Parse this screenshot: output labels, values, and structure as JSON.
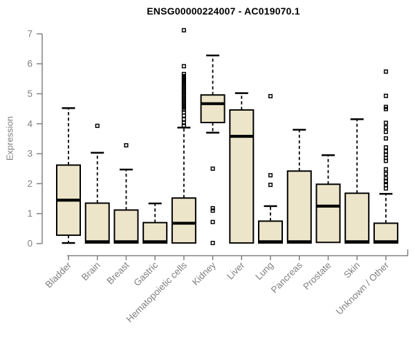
{
  "style": {
    "box_fill": "#ece5c9",
    "box_border": "#000000",
    "median_color": "#000000",
    "whisker_color": "#000000",
    "outlier_color": "#000000",
    "axis_color": "#808080",
    "tick_label_color": "#808080",
    "title_color": "#000000",
    "background": "#ffffff"
  },
  "chart_data": {
    "type": "boxplot",
    "title": "ENSG00000224007 - AC019070.1",
    "ylabel": "Expression",
    "xlabel": "",
    "ylim": [
      0,
      7
    ],
    "yticks": [
      0,
      1,
      2,
      3,
      4,
      5,
      6,
      7
    ],
    "grid": false,
    "legend": "none",
    "x_label_rotation_deg": 45,
    "categories": [
      "Bladder",
      "Brain",
      "Breast",
      "Gastric",
      "Hematopoietic cells",
      "Kidney",
      "Liver",
      "Lung",
      "Pancreas",
      "Prostate",
      "Skin",
      "Unknown / Other"
    ],
    "series": [
      {
        "category": "Bladder",
        "whisker_low": 0.02,
        "q1": 0.28,
        "median": 1.45,
        "q3": 2.62,
        "whisker_high": 4.52,
        "outliers": []
      },
      {
        "category": "Brain",
        "whisker_low": 0.0,
        "q1": 0.02,
        "median": 0.06,
        "q3": 1.35,
        "whisker_high": 3.03,
        "outliers": [
          3.93
        ]
      },
      {
        "category": "Breast",
        "whisker_low": 0.0,
        "q1": 0.02,
        "median": 0.06,
        "q3": 1.12,
        "whisker_high": 2.47,
        "outliers": [
          3.28
        ]
      },
      {
        "category": "Gastric",
        "whisker_low": 0.0,
        "q1": 0.02,
        "median": 0.06,
        "q3": 0.7,
        "whisker_high": 1.34,
        "outliers": []
      },
      {
        "category": "Hematopoietic cells",
        "whisker_low": 0.0,
        "q1": 0.02,
        "median": 0.68,
        "q3": 1.52,
        "whisker_high": 3.87,
        "outliers": [
          7.12,
          5.92,
          5.66,
          5.59,
          5.52,
          5.45,
          5.38,
          5.31,
          5.24,
          5.17,
          5.1,
          5.03,
          4.96,
          4.89,
          4.82,
          4.75,
          4.68,
          4.61,
          4.54,
          4.47,
          4.38,
          4.27,
          4.15,
          4.03,
          3.94
        ]
      },
      {
        "category": "Kidney",
        "whisker_low": 3.7,
        "q1": 4.04,
        "median": 4.67,
        "q3": 4.96,
        "whisker_high": 6.28,
        "outliers": [
          2.5,
          1.18,
          1.1,
          0.72,
          0.02
        ]
      },
      {
        "category": "Liver",
        "whisker_low": 0.0,
        "q1": 0.02,
        "median": 3.58,
        "q3": 4.46,
        "whisker_high": 5.02,
        "outliers": []
      },
      {
        "category": "Lung",
        "whisker_low": 0.0,
        "q1": 0.02,
        "median": 0.06,
        "q3": 0.75,
        "whisker_high": 1.25,
        "outliers": [
          4.92,
          2.28,
          1.96
        ]
      },
      {
        "category": "Pancreas",
        "whisker_low": 0.0,
        "q1": 0.02,
        "median": 0.06,
        "q3": 2.42,
        "whisker_high": 3.8,
        "outliers": []
      },
      {
        "category": "Prostate",
        "whisker_low": 0.0,
        "q1": 0.04,
        "median": 1.25,
        "q3": 1.98,
        "whisker_high": 2.95,
        "outliers": []
      },
      {
        "category": "Skin",
        "whisker_low": 0.0,
        "q1": 0.02,
        "median": 0.06,
        "q3": 1.68,
        "whisker_high": 4.15,
        "outliers": []
      },
      {
        "category": "Unknown / Other",
        "whisker_low": 0.0,
        "q1": 0.02,
        "median": 0.06,
        "q3": 0.68,
        "whisker_high": 1.66,
        "outliers": [
          5.74,
          4.93,
          4.56,
          4.49,
          4.03,
          3.88,
          3.73,
          3.51,
          3.21,
          3.08,
          2.96,
          2.86,
          2.76,
          2.48,
          2.33,
          2.18,
          2.09,
          1.95,
          1.84
        ]
      }
    ]
  }
}
